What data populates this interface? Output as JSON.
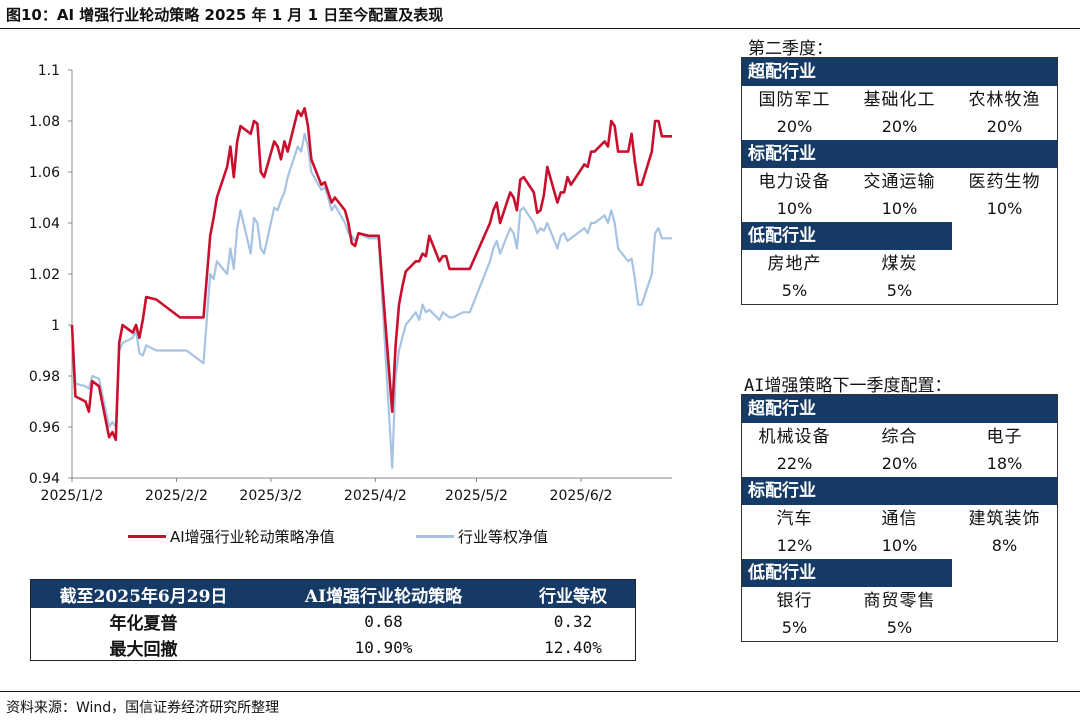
{
  "figure_title": "图10：AI 增强行业轮动策略 2025 年 1 月 1 日至今配置及表现",
  "source": "资料来源：Wind，国信证券经济研究所整理",
  "chart_data": {
    "type": "line",
    "title": "",
    "xlabel": "",
    "ylabel": "",
    "ylim": [
      0.94,
      1.1
    ],
    "yticks": [
      "0.94",
      "0.96",
      "0.98",
      "1",
      "1.02",
      "1.04",
      "1.06",
      "1.08",
      "1.1"
    ],
    "xticks": [
      "2025/1/2",
      "2025/2/2",
      "2025/3/2",
      "2025/4/2",
      "2025/5/2",
      "2025/6/2"
    ],
    "x_start": "2025/1/2",
    "x_end": "2025/6/29",
    "legend_position": "bottom",
    "series": [
      {
        "name": "AI增强行业轮动策略净值",
        "color": "#c8102e",
        "points": [
          [
            "2025/1/2",
            1.0
          ],
          [
            "2025/1/3",
            0.972
          ],
          [
            "2025/1/6",
            0.97
          ],
          [
            "2025/1/7",
            0.966
          ],
          [
            "2025/1/8",
            0.978
          ],
          [
            "2025/1/10",
            0.976
          ],
          [
            "2025/1/13",
            0.956
          ],
          [
            "2025/1/14",
            0.958
          ],
          [
            "2025/1/15",
            0.955
          ],
          [
            "2025/1/16",
            0.993
          ],
          [
            "2025/1/17",
            1.0
          ],
          [
            "2025/1/20",
            0.997
          ],
          [
            "2025/1/21",
            1.0
          ],
          [
            "2025/1/22",
            0.995
          ],
          [
            "2025/1/23",
            1.002
          ],
          [
            "2025/1/24",
            1.011
          ],
          [
            "2025/1/27",
            1.01
          ],
          [
            "2025/2/3",
            1.003
          ],
          [
            "2025/2/5",
            1.003
          ],
          [
            "2025/2/10",
            1.003
          ],
          [
            "2025/2/12",
            1.035
          ],
          [
            "2025/2/13",
            1.042
          ],
          [
            "2025/2/14",
            1.05
          ],
          [
            "2025/2/17",
            1.062
          ],
          [
            "2025/2/18",
            1.07
          ],
          [
            "2025/2/19",
            1.058
          ],
          [
            "2025/2/20",
            1.072
          ],
          [
            "2025/2/21",
            1.078
          ],
          [
            "2025/2/24",
            1.075
          ],
          [
            "2025/2/25",
            1.08
          ],
          [
            "2025/2/26",
            1.079
          ],
          [
            "2025/2/27",
            1.06
          ],
          [
            "2025/2/28",
            1.058
          ],
          [
            "2025/3/3",
            1.072
          ],
          [
            "2025/3/4",
            1.07
          ],
          [
            "2025/3/5",
            1.065
          ],
          [
            "2025/3/6",
            1.072
          ],
          [
            "2025/3/7",
            1.068
          ],
          [
            "2025/3/10",
            1.084
          ],
          [
            "2025/3/11",
            1.082
          ],
          [
            "2025/3/12",
            1.085
          ],
          [
            "2025/3/13",
            1.078
          ],
          [
            "2025/3/14",
            1.065
          ],
          [
            "2025/3/17",
            1.055
          ],
          [
            "2025/3/18",
            1.056
          ],
          [
            "2025/3/19",
            1.052
          ],
          [
            "2025/3/20",
            1.048
          ],
          [
            "2025/3/21",
            1.05
          ],
          [
            "2025/3/24",
            1.045
          ],
          [
            "2025/3/25",
            1.04
          ],
          [
            "2025/3/26",
            1.032
          ],
          [
            "2025/3/27",
            1.031
          ],
          [
            "2025/3/28",
            1.036
          ],
          [
            "2025/3/31",
            1.035
          ],
          [
            "2025/4/3",
            1.035
          ],
          [
            "2025/4/7",
            0.966
          ],
          [
            "2025/4/8",
            0.992
          ],
          [
            "2025/4/9",
            1.008
          ],
          [
            "2025/4/10",
            1.015
          ],
          [
            "2025/4/11",
            1.021
          ],
          [
            "2025/4/14",
            1.025
          ],
          [
            "2025/4/15",
            1.025
          ],
          [
            "2025/4/16",
            1.028
          ],
          [
            "2025/4/17",
            1.027
          ],
          [
            "2025/4/18",
            1.035
          ],
          [
            "2025/4/21",
            1.025
          ],
          [
            "2025/4/22",
            1.027
          ],
          [
            "2025/4/23",
            1.027
          ],
          [
            "2025/4/24",
            1.022
          ],
          [
            "2025/4/25",
            1.022
          ],
          [
            "2025/4/28",
            1.022
          ],
          [
            "2025/4/29",
            1.022
          ],
          [
            "2025/4/30",
            1.022
          ],
          [
            "2025/5/6",
            1.04
          ],
          [
            "2025/5/7",
            1.045
          ],
          [
            "2025/5/8",
            1.048
          ],
          [
            "2025/5/9",
            1.04
          ],
          [
            "2025/5/12",
            1.052
          ],
          [
            "2025/5/13",
            1.05
          ],
          [
            "2025/5/14",
            1.045
          ],
          [
            "2025/5/15",
            1.057
          ],
          [
            "2025/5/16",
            1.058
          ],
          [
            "2025/5/19",
            1.052
          ],
          [
            "2025/5/20",
            1.044
          ],
          [
            "2025/5/21",
            1.045
          ],
          [
            "2025/5/22",
            1.051
          ],
          [
            "2025/5/23",
            1.062
          ],
          [
            "2025/5/26",
            1.048
          ],
          [
            "2025/5/27",
            1.052
          ],
          [
            "2025/5/28",
            1.052
          ],
          [
            "2025/5/29",
            1.058
          ],
          [
            "2025/5/30",
            1.055
          ],
          [
            "2025/6/3",
            1.063
          ],
          [
            "2025/6/4",
            1.062
          ],
          [
            "2025/6/5",
            1.068
          ],
          [
            "2025/6/6",
            1.068
          ],
          [
            "2025/6/9",
            1.072
          ],
          [
            "2025/6/10",
            1.07
          ],
          [
            "2025/6/11",
            1.08
          ],
          [
            "2025/6/12",
            1.078
          ],
          [
            "2025/6/13",
            1.068
          ],
          [
            "2025/6/16",
            1.068
          ],
          [
            "2025/6/17",
            1.075
          ],
          [
            "2025/6/18",
            1.064
          ],
          [
            "2025/6/19",
            1.055
          ],
          [
            "2025/6/20",
            1.055
          ],
          [
            "2025/6/23",
            1.068
          ],
          [
            "2025/6/24",
            1.08
          ],
          [
            "2025/6/25",
            1.08
          ],
          [
            "2025/6/26",
            1.074
          ],
          [
            "2025/6/27",
            1.074
          ],
          [
            "2025/6/29",
            1.074
          ]
        ]
      },
      {
        "name": "行业等权净值",
        "color": "#a6c3e3",
        "points": [
          [
            "2025/1/2",
            1.0
          ],
          [
            "2025/1/3",
            0.977
          ],
          [
            "2025/1/6",
            0.976
          ],
          [
            "2025/1/7",
            0.975
          ],
          [
            "2025/1/8",
            0.98
          ],
          [
            "2025/1/10",
            0.979
          ],
          [
            "2025/1/13",
            0.96
          ],
          [
            "2025/1/14",
            0.962
          ],
          [
            "2025/1/15",
            0.96
          ],
          [
            "2025/1/16",
            0.99
          ],
          [
            "2025/1/17",
            0.993
          ],
          [
            "2025/1/20",
            0.995
          ],
          [
            "2025/1/21",
            0.998
          ],
          [
            "2025/1/22",
            0.989
          ],
          [
            "2025/1/23",
            0.988
          ],
          [
            "2025/1/24",
            0.992
          ],
          [
            "2025/1/27",
            0.99
          ],
          [
            "2025/2/3",
            0.99
          ],
          [
            "2025/2/5",
            0.99
          ],
          [
            "2025/2/10",
            0.985
          ],
          [
            "2025/2/12",
            1.02
          ],
          [
            "2025/2/13",
            1.018
          ],
          [
            "2025/2/14",
            1.025
          ],
          [
            "2025/2/17",
            1.02
          ],
          [
            "2025/2/18",
            1.03
          ],
          [
            "2025/2/19",
            1.022
          ],
          [
            "2025/2/20",
            1.038
          ],
          [
            "2025/2/21",
            1.045
          ],
          [
            "2025/2/24",
            1.028
          ],
          [
            "2025/2/25",
            1.042
          ],
          [
            "2025/2/26",
            1.04
          ],
          [
            "2025/2/27",
            1.03
          ],
          [
            "2025/2/28",
            1.028
          ],
          [
            "2025/3/3",
            1.046
          ],
          [
            "2025/3/4",
            1.045
          ],
          [
            "2025/3/5",
            1.049
          ],
          [
            "2025/3/6",
            1.052
          ],
          [
            "2025/3/7",
            1.058
          ],
          [
            "2025/3/10",
            1.07
          ],
          [
            "2025/3/11",
            1.068
          ],
          [
            "2025/3/12",
            1.075
          ],
          [
            "2025/3/13",
            1.07
          ],
          [
            "2025/3/14",
            1.06
          ],
          [
            "2025/3/17",
            1.053
          ],
          [
            "2025/3/18",
            1.054
          ],
          [
            "2025/3/19",
            1.05
          ],
          [
            "2025/3/20",
            1.045
          ],
          [
            "2025/3/21",
            1.047
          ],
          [
            "2025/3/24",
            1.04
          ],
          [
            "2025/3/25",
            1.036
          ],
          [
            "2025/3/26",
            1.035
          ],
          [
            "2025/3/27",
            1.033
          ],
          [
            "2025/3/28",
            1.036
          ],
          [
            "2025/3/31",
            1.034
          ],
          [
            "2025/4/3",
            1.034
          ],
          [
            "2025/4/7",
            0.944
          ],
          [
            "2025/4/8",
            0.98
          ],
          [
            "2025/4/9",
            0.99
          ],
          [
            "2025/4/10",
            0.995
          ],
          [
            "2025/4/11",
            1.0
          ],
          [
            "2025/4/14",
            1.005
          ],
          [
            "2025/4/15",
            1.002
          ],
          [
            "2025/4/16",
            1.008
          ],
          [
            "2025/4/17",
            1.005
          ],
          [
            "2025/4/18",
            1.006
          ],
          [
            "2025/4/21",
            1.002
          ],
          [
            "2025/4/22",
            1.005
          ],
          [
            "2025/4/23",
            1.004
          ],
          [
            "2025/4/24",
            1.003
          ],
          [
            "2025/4/25",
            1.003
          ],
          [
            "2025/4/28",
            1.005
          ],
          [
            "2025/4/29",
            1.005
          ],
          [
            "2025/4/30",
            1.005
          ],
          [
            "2025/5/6",
            1.025
          ],
          [
            "2025/5/7",
            1.03
          ],
          [
            "2025/5/8",
            1.033
          ],
          [
            "2025/5/9",
            1.028
          ],
          [
            "2025/5/12",
            1.038
          ],
          [
            "2025/5/13",
            1.036
          ],
          [
            "2025/5/14",
            1.03
          ],
          [
            "2025/5/15",
            1.045
          ],
          [
            "2025/5/16",
            1.046
          ],
          [
            "2025/5/19",
            1.04
          ],
          [
            "2025/5/20",
            1.036
          ],
          [
            "2025/5/21",
            1.038
          ],
          [
            "2025/5/22",
            1.037
          ],
          [
            "2025/5/23",
            1.04
          ],
          [
            "2025/5/26",
            1.03
          ],
          [
            "2025/5/27",
            1.035
          ],
          [
            "2025/5/28",
            1.036
          ],
          [
            "2025/5/29",
            1.033
          ],
          [
            "2025/5/30",
            1.034
          ],
          [
            "2025/6/3",
            1.038
          ],
          [
            "2025/6/4",
            1.036
          ],
          [
            "2025/6/5",
            1.04
          ],
          [
            "2025/6/6",
            1.04
          ],
          [
            "2025/6/9",
            1.043
          ],
          [
            "2025/6/10",
            1.04
          ],
          [
            "2025/6/11",
            1.045
          ],
          [
            "2025/6/12",
            1.04
          ],
          [
            "2025/6/13",
            1.03
          ],
          [
            "2025/6/16",
            1.025
          ],
          [
            "2025/6/17",
            1.026
          ],
          [
            "2025/6/18",
            1.018
          ],
          [
            "2025/6/19",
            1.008
          ],
          [
            "2025/6/20",
            1.008
          ],
          [
            "2025/6/23",
            1.02
          ],
          [
            "2025/6/24",
            1.036
          ],
          [
            "2025/6/25",
            1.038
          ],
          [
            "2025/6/26",
            1.034
          ],
          [
            "2025/6/27",
            1.034
          ],
          [
            "2025/6/29",
            1.034
          ]
        ]
      }
    ]
  },
  "performance_table": {
    "headers": [
      "截至2025年6月29日",
      "AI增强行业轮动策略",
      "行业等权"
    ],
    "rows": [
      {
        "label": "年化夏普",
        "strategy": "0.68",
        "equal_weight": "0.32"
      },
      {
        "label": "最大回撤",
        "strategy": "10.90%",
        "equal_weight": "12.40%"
      }
    ]
  },
  "q2_allocation": {
    "title": "第二季度：",
    "overweight": {
      "label": "超配行业",
      "items": [
        {
          "industry": "国防军工",
          "weight": "20%"
        },
        {
          "industry": "基础化工",
          "weight": "20%"
        },
        {
          "industry": "农林牧渔",
          "weight": "20%"
        }
      ]
    },
    "standard": {
      "label": "标配行业",
      "items": [
        {
          "industry": "电力设备",
          "weight": "10%"
        },
        {
          "industry": "交通运输",
          "weight": "10%"
        },
        {
          "industry": "医药生物",
          "weight": "10%"
        }
      ]
    },
    "underweight": {
      "label": "低配行业",
      "items": [
        {
          "industry": "房地产",
          "weight": "5%"
        },
        {
          "industry": "煤炭",
          "weight": "5%"
        }
      ]
    }
  },
  "next_q_allocation": {
    "title": "AI增强策略下一季度配置：",
    "overweight": {
      "label": "超配行业",
      "items": [
        {
          "industry": "机械设备",
          "weight": "22%"
        },
        {
          "industry": "综合",
          "weight": "20%"
        },
        {
          "industry": "电子",
          "weight": "18%"
        }
      ]
    },
    "standard": {
      "label": "标配行业",
      "items": [
        {
          "industry": "汽车",
          "weight": "12%"
        },
        {
          "industry": "通信",
          "weight": "10%"
        },
        {
          "industry": "建筑装饰",
          "weight": "8%"
        }
      ]
    },
    "underweight": {
      "label": "低配行业",
      "items": [
        {
          "industry": "银行",
          "weight": "5%"
        },
        {
          "industry": "商贸零售",
          "weight": "5%"
        }
      ]
    }
  }
}
